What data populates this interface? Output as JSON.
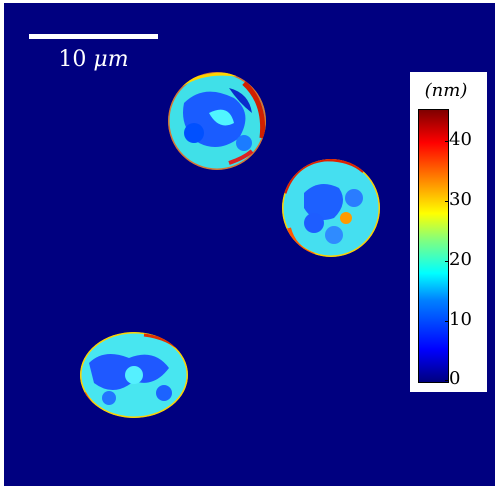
{
  "scale_bar": {
    "label_value": "10",
    "label_unit": "μm"
  },
  "colorbar": {
    "unit_label": "(nm)",
    "ticks": [
      "40",
      "30",
      "20",
      "10",
      "0"
    ]
  },
  "colors": {
    "background": "#000080",
    "scale_bar": "#ffffff"
  }
}
